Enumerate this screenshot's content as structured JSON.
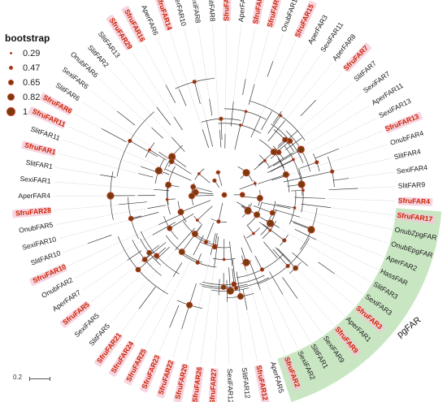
{
  "legend": {
    "title": "bootstrap",
    "items": [
      {
        "label": "0.29",
        "value": 0.29
      },
      {
        "label": "0.47",
        "value": 0.47
      },
      {
        "label": "0.65",
        "value": 0.65
      },
      {
        "label": "0.82",
        "value": 0.82
      },
      {
        "label": "1",
        "value": 1
      }
    ]
  },
  "scale_bar": {
    "label": "0.2"
  },
  "clade": {
    "label": "pgFAR",
    "color": "#c9e6c3"
  },
  "leaves": [
    "SfruFAR4",
    "SfruFAR17",
    "OnubZpgFAR",
    "OnubEpgFAR",
    "AperFAR2",
    "HassFAR",
    "SlitFAR3",
    "SexiFAR3",
    "SfruFAR3",
    "AperFAR1",
    "SfruFAR9",
    "SexiFAR9",
    "SlitFAR1",
    "SexiFAR2",
    "SfruFAR2",
    "AperFAR5",
    "SfruFAR12",
    "SlitFAR12",
    "SexiFAR12",
    "SfruFAR27",
    "SfruFAR26",
    "SfruFAR20",
    "SfruFAR22",
    "SfruFAR23",
    "SfruFAR25",
    "SfruFAR24",
    "SfruFAR21",
    "SlitFAR5",
    "SexiFAR5",
    "SfruFAR5",
    "AperFAR7",
    "OnubFAR2",
    "SfruFAR10",
    "SlitFAR10",
    "SexiFAR10",
    "OnubFAR5",
    "SfruFAR28",
    "AperFAR4",
    "SexiFAR1",
    "SlitFAR1",
    "SfruFAR1",
    "SlitFAR11",
    "SfruFAR11",
    "SfruFAR6",
    "SlitFAR6",
    "SexiFAR6",
    "OnubFAR6",
    "SlitFAR2",
    "SlitFAR13",
    "SfruFAR29",
    "SfruFAR16",
    "AperFAR6",
    "SfruFAR14",
    "AperFAR10",
    "SexiFAR8",
    "SlitFAR8",
    "SfruFAR8",
    "AperFAR9",
    "SfruFAR19",
    "SfruFAR18",
    "OnubFAR1",
    "SfruFAR15",
    "AperFAR3",
    "SexiFAR11",
    "AperFAR8",
    "SfruFAR7",
    "SlitFAR7",
    "SexiFAR7",
    "AperFAR11",
    "SexiFAR13",
    "SfruFAR13",
    "OnubFAR4",
    "SlitFAR4",
    "SexiFAR4",
    "SlitFAR9"
  ],
  "colors": {
    "sfru": "#cc2200",
    "other": "#1a1a1a",
    "node_fill": "#7a3b0c",
    "node_stroke": "#c8402c",
    "highlight": "#f3c6d6",
    "branch": "#3a3a3a",
    "guide": "#b8b8b8"
  }
}
